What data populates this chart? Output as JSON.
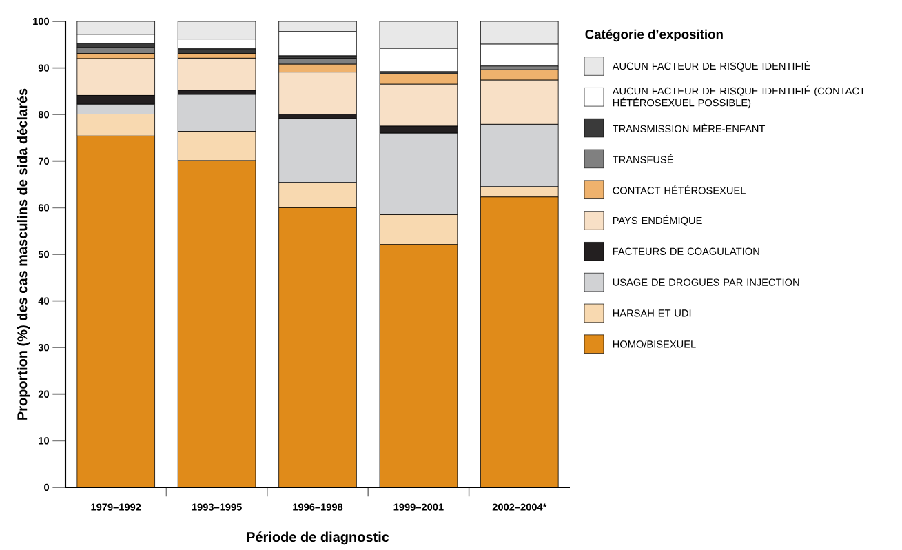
{
  "chart_data": {
    "type": "bar",
    "stacked": true,
    "xlabel": "Période de diagnostic",
    "ylabel": "Proportion (%) des cas masculins de sida déclarés",
    "legend_title": "Catégorie d’exposition",
    "legend": "right",
    "categories": [
      "1979–1992",
      "1993–1995",
      "1996–1998",
      "1999–2001",
      "2002–2004*"
    ],
    "ylim": [
      0,
      100
    ],
    "yticks": [
      0,
      10,
      20,
      30,
      40,
      50,
      60,
      70,
      80,
      90,
      100
    ],
    "series": [
      {
        "name": "HOMO/BISEXUEL",
        "color": "#e08b1a",
        "values": [
          75.4,
          70.1,
          60.0,
          52.1,
          62.3
        ]
      },
      {
        "name": "HARSAH ET UDI",
        "color": "#f8d9b0",
        "values": [
          4.7,
          6.3,
          5.4,
          6.4,
          2.2
        ]
      },
      {
        "name": "USAGE DE DROGUES PAR INJECTION",
        "color": "#d1d2d4",
        "values": [
          2.1,
          7.9,
          13.7,
          17.5,
          13.4
        ]
      },
      {
        "name": "FACTEURS DE COAGULATION",
        "color": "#231f20",
        "values": [
          1.9,
          0.9,
          1.0,
          1.5,
          0
        ]
      },
      {
        "name": "PAYS ENDÉMIQUE",
        "color": "#f8e0c6",
        "values": [
          7.9,
          6.9,
          9.0,
          9.0,
          9.5
        ]
      },
      {
        "name": "CONTACT HÉTÉROSEXUEL",
        "color": "#efb26d",
        "values": [
          1.1,
          1.0,
          1.7,
          2.2,
          2.2
        ]
      },
      {
        "name": "TRANSFUSÉ",
        "color": "#808080",
        "values": [
          1.3,
          0,
          1.2,
          0,
          0.8
        ]
      },
      {
        "name": "TRANSMISSION MÈRE-ENFANT",
        "color": "#3a3a3a",
        "values": [
          0.9,
          1.0,
          0.6,
          0.5,
          0
        ]
      },
      {
        "name": "AUCUN FACTEUR DE RISQUE IDENTIFIÉ (CONTACT HÉTÉROSEXUEL POSSIBLE)",
        "color": "#ffffff",
        "values": [
          1.9,
          2.1,
          5.2,
          5.0,
          4.7
        ]
      },
      {
        "name": "AUCUN FACTEUR DE RISQUE IDENTIFIÉ",
        "color": "#e8e8e8",
        "values": [
          2.8,
          3.8,
          2.2,
          5.8,
          4.9
        ]
      }
    ]
  }
}
